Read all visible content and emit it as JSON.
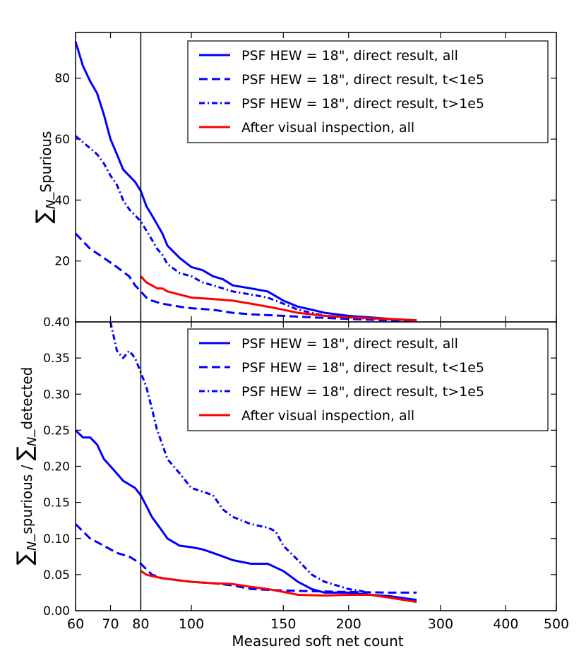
{
  "chart_data": [
    {
      "type": "line",
      "panel": "top",
      "ylabel": "∑N_Spurious",
      "xscale": "log",
      "xlim": [
        60,
        500
      ],
      "ylim": [
        0,
        95
      ],
      "yticks": [
        20,
        40,
        60,
        80
      ],
      "legend_placement": "top-right",
      "series": [
        {
          "name": "PSF HEW = 18\", direct result, all",
          "color": "#0000ff",
          "style": "solid",
          "x": [
            60,
            62,
            64,
            66,
            68,
            70,
            72,
            74,
            76,
            78,
            80,
            82,
            84,
            86,
            88,
            90,
            95,
            100,
            105,
            110,
            115,
            120,
            130,
            140,
            150,
            160,
            170,
            180,
            200,
            220,
            240,
            270
          ],
          "y": [
            92,
            84,
            79,
            75,
            68,
            60,
            55,
            50,
            48,
            46,
            43,
            38,
            35,
            32,
            29,
            25,
            21,
            18,
            17,
            15,
            14,
            12,
            11,
            10,
            7,
            5,
            4,
            3,
            2,
            1.5,
            1,
            0.5
          ]
        },
        {
          "name": "PSF HEW = 18\", direct result, t<1e5",
          "color": "#0000ff",
          "style": "dashed",
          "x": [
            60,
            64,
            68,
            72,
            76,
            78,
            80,
            82,
            84,
            88,
            95,
            100,
            110,
            120,
            130,
            150,
            170,
            200,
            240,
            270
          ],
          "y": [
            29,
            24,
            21,
            18,
            15,
            12,
            10,
            8,
            7,
            6,
            5,
            4.5,
            4,
            3,
            2.5,
            2,
            1.5,
            1,
            0.5,
            0.3
          ]
        },
        {
          "name": "PSF HEW = 18\", direct result, t>1e5",
          "color": "#0000ff",
          "style": "dashdot",
          "x": [
            60,
            62,
            64,
            66,
            68,
            70,
            72,
            74,
            76,
            78,
            80,
            82,
            84,
            86,
            88,
            90,
            95,
            100,
            105,
            110,
            115,
            120,
            130,
            140,
            150,
            160,
            170,
            180,
            200,
            220,
            240,
            270
          ],
          "y": [
            61,
            59,
            57,
            55,
            52,
            48,
            45,
            40,
            37,
            35,
            33,
            30,
            27,
            24,
            22,
            19,
            16,
            15,
            13,
            12,
            11,
            10,
            9,
            8,
            6,
            4,
            3,
            2,
            1.5,
            1,
            0.8,
            0.5
          ]
        },
        {
          "name": "After visual inspection, all",
          "color": "#ff0000",
          "style": "solid",
          "x": [
            80,
            82,
            84,
            86,
            88,
            90,
            95,
            100,
            110,
            120,
            130,
            140,
            150,
            160,
            170,
            180,
            200,
            220,
            240,
            270
          ],
          "y": [
            15,
            13,
            12,
            11,
            11,
            10,
            9,
            8,
            7.5,
            7,
            6,
            5,
            4,
            3,
            2.5,
            2,
            1.5,
            1.2,
            1,
            0.5
          ]
        }
      ]
    },
    {
      "type": "line",
      "panel": "bottom",
      "ylabel": "∑N_spurious / ∑N_detected",
      "xlabel": "Measured soft net count",
      "xscale": "log",
      "xlim": [
        60,
        500
      ],
      "ylim": [
        0,
        0.4
      ],
      "yticks": [
        0.0,
        0.05,
        0.1,
        0.15,
        0.2,
        0.25,
        0.3,
        0.35,
        0.4
      ],
      "xticks": [
        60,
        70,
        80,
        100,
        150,
        200,
        300,
        400,
        500
      ],
      "legend_placement": "top-right",
      "series": [
        {
          "name": "PSF HEW = 18\", direct result, all",
          "color": "#0000ff",
          "style": "solid",
          "x": [
            60,
            62,
            64,
            66,
            68,
            70,
            72,
            74,
            76,
            78,
            80,
            82,
            84,
            86,
            88,
            90,
            95,
            100,
            105,
            110,
            115,
            120,
            130,
            140,
            150,
            160,
            170,
            180,
            200,
            220,
            240,
            270
          ],
          "y": [
            0.25,
            0.24,
            0.24,
            0.23,
            0.21,
            0.2,
            0.19,
            0.18,
            0.175,
            0.17,
            0.16,
            0.145,
            0.13,
            0.12,
            0.11,
            0.1,
            0.09,
            0.088,
            0.085,
            0.08,
            0.075,
            0.07,
            0.065,
            0.065,
            0.055,
            0.04,
            0.03,
            0.025,
            0.025,
            0.022,
            0.02,
            0.015
          ]
        },
        {
          "name": "PSF HEW = 18\", direct result, t<1e5",
          "color": "#0000ff",
          "style": "dashed",
          "x": [
            60,
            64,
            68,
            72,
            76,
            78,
            80,
            84,
            88,
            95,
            100,
            110,
            120,
            130,
            150,
            170,
            200,
            240,
            270
          ],
          "y": [
            0.12,
            0.1,
            0.09,
            0.08,
            0.075,
            0.07,
            0.065,
            0.05,
            0.045,
            0.042,
            0.04,
            0.038,
            0.035,
            0.03,
            0.028,
            0.027,
            0.026,
            0.025,
            0.025
          ]
        },
        {
          "name": "PSF HEW = 18\", direct result, t>1e5",
          "color": "#0000ff",
          "style": "dashdot",
          "x": [
            70,
            72,
            74,
            76,
            78,
            80,
            82,
            84,
            86,
            88,
            90,
            95,
            100,
            105,
            110,
            115,
            120,
            130,
            140,
            145,
            150,
            160,
            170,
            180,
            200,
            220
          ],
          "y": [
            0.4,
            0.36,
            0.35,
            0.36,
            0.35,
            0.33,
            0.31,
            0.28,
            0.25,
            0.23,
            0.21,
            0.19,
            0.17,
            0.165,
            0.16,
            0.14,
            0.13,
            0.12,
            0.115,
            0.11,
            0.09,
            0.07,
            0.05,
            0.04,
            0.03,
            0.025
          ]
        },
        {
          "name": "After visual inspection, all",
          "color": "#ff0000",
          "style": "solid",
          "x": [
            80,
            82,
            84,
            88,
            95,
            100,
            110,
            120,
            130,
            140,
            150,
            160,
            180,
            200,
            220,
            240,
            270
          ],
          "y": [
            0.055,
            0.05,
            0.048,
            0.045,
            0.042,
            0.04,
            0.038,
            0.037,
            0.033,
            0.03,
            0.026,
            0.022,
            0.021,
            0.022,
            0.022,
            0.018,
            0.012
          ]
        }
      ]
    }
  ],
  "axis_labels": {
    "top_ylabel_sum": "∑",
    "top_ylabel_N": "N",
    "top_ylabel_rest": "_Spurious",
    "bottom_ylabel_sum1": "∑",
    "bottom_ylabel_N1": "N",
    "bottom_ylabel_rest1": "_spurious / ",
    "bottom_ylabel_sum2": "∑",
    "bottom_ylabel_N2": "N",
    "bottom_ylabel_rest2": "_detected",
    "xlabel": "Measured soft net count"
  },
  "top_ytick_labels": [
    "20",
    "40",
    "60",
    "80"
  ],
  "bottom_ytick_labels": [
    "0.00",
    "0.05",
    "0.10",
    "0.15",
    "0.20",
    "0.25",
    "0.30",
    "0.35",
    "0.40"
  ],
  "xtick_labels": [
    "60",
    "70",
    "80",
    "100",
    "150",
    "200",
    "300",
    "400",
    "500"
  ],
  "reference_line_x": 80
}
